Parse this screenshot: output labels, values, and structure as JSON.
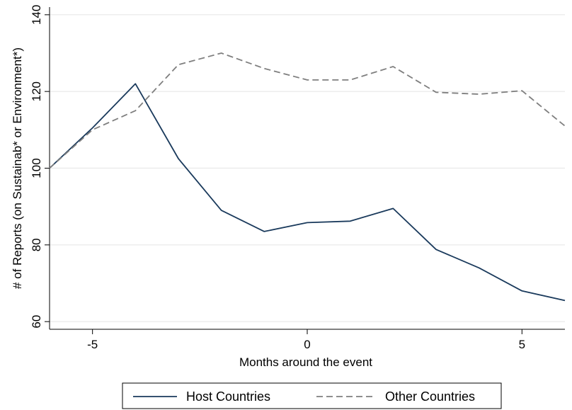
{
  "chart_data": {
    "type": "line",
    "title": "",
    "xlabel": "Months around the event",
    "ylabel": "# of Reports (on Sustainab* or Environment*)",
    "xlim": [
      -6,
      6
    ],
    "ylim": [
      58,
      142
    ],
    "x_ticks": [
      -5,
      0,
      5
    ],
    "x_tick_labels": [
      "-5",
      "0",
      "5"
    ],
    "y_ticks": [
      60,
      80,
      100,
      120,
      140
    ],
    "y_tick_labels": [
      "60",
      "80",
      "100",
      "120",
      "140"
    ],
    "grid": true,
    "legend_position": "bottom",
    "x": [
      -6,
      -5,
      -4,
      -3,
      -2,
      -1,
      0,
      1,
      2,
      3,
      4,
      5,
      6
    ],
    "series": [
      {
        "name": "Host Countries",
        "color": "#1a3a5c",
        "style": "solid",
        "values": [
          100,
          110.5,
          122,
          102.5,
          89,
          83.5,
          85.8,
          86.2,
          89.5,
          78.8,
          74,
          68,
          65.5
        ]
      },
      {
        "name": "Other Countries",
        "color": "#7f7f7f",
        "style": "dashed",
        "values": [
          100,
          110,
          115,
          127,
          130,
          126,
          123,
          123,
          126.5,
          119.8,
          119.3,
          120.2,
          111
        ]
      }
    ]
  }
}
